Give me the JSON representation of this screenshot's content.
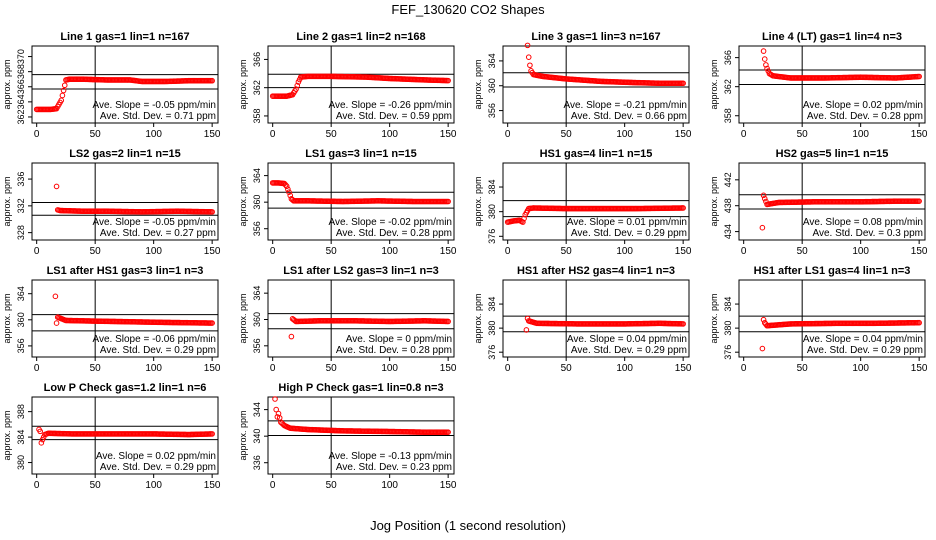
{
  "page": {
    "title": "FEF_130620  CO2 Shapes",
    "xlabel": "Jog Position (1 second resolution)"
  },
  "style": {
    "point_color": "#ff0000",
    "line_color": "#000000"
  },
  "chart_data": [
    {
      "type": "scatter",
      "title": "Line 1 gas=1 lin=1 n=167",
      "ylabel": "approx. ppm",
      "xticks": [
        0,
        50,
        100,
        150
      ],
      "yticks": [
        362,
        364,
        366,
        368,
        370
      ],
      "xlim": [
        -4,
        155
      ],
      "ylim": [
        361.2,
        371.4
      ],
      "ref_x": 50,
      "ref_y": [
        365.7,
        367.6
      ],
      "annotations": [
        "Ave. Slope = -0.05 ppm/min",
        "Ave. Std. Dev. = 0.71 ppm"
      ],
      "points": [
        [
          0,
          363
        ],
        [
          12,
          363
        ],
        [
          17,
          363.1
        ],
        [
          21,
          364.2
        ],
        [
          23,
          365.5
        ],
        [
          25,
          366.9
        ],
        [
          28,
          367.0
        ],
        [
          40,
          367.0
        ],
        [
          60,
          366.9
        ],
        [
          80,
          366.9
        ],
        [
          90,
          366.7
        ],
        [
          110,
          366.7
        ],
        [
          130,
          366.8
        ],
        [
          150,
          366.8
        ]
      ]
    },
    {
      "type": "scatter",
      "title": "Line 2 gas=1 lin=2 n=168",
      "ylabel": "approx. ppm",
      "xticks": [
        0,
        50,
        100,
        150
      ],
      "yticks": [
        358,
        362,
        366
      ],
      "xlim": [
        -4,
        155
      ],
      "ylim": [
        357,
        367.9
      ],
      "ref_x": 50,
      "ref_y": [
        362,
        363.9
      ],
      "annotations": [
        "Ave. Slope = -0.26 ppm/min",
        "Ave. Std. Dev. = 0.59 ppm"
      ],
      "points": [
        [
          0,
          360.8
        ],
        [
          12,
          360.8
        ],
        [
          17,
          361
        ],
        [
          20,
          361.8
        ],
        [
          22,
          362.8
        ],
        [
          24,
          363.5
        ],
        [
          30,
          363.6
        ],
        [
          50,
          363.6
        ],
        [
          80,
          363.5
        ],
        [
          100,
          363.3
        ],
        [
          130,
          363.1
        ],
        [
          150,
          363.0
        ]
      ]
    },
    {
      "type": "scatter",
      "title": "Line 3 gas=1 lin=3 n=167",
      "ylabel": "approx. ppm",
      "xticks": [
        0,
        50,
        100,
        150
      ],
      "yticks": [
        356,
        360,
        364
      ],
      "xlim": [
        -4,
        155
      ],
      "ylim": [
        354,
        366.4
      ],
      "ref_x": 50,
      "ref_y": [
        359.8,
        362.1
      ],
      "annotations": [
        "Ave. Slope = -0.21 ppm/min",
        "Ave. Std. Dev. = 0.66 ppm"
      ],
      "points": [
        [
          17,
          366.5
        ],
        [
          18,
          364.6
        ],
        [
          19,
          363.3
        ],
        [
          20,
          362.4
        ],
        [
          22,
          361.8
        ],
        [
          30,
          361.5
        ],
        [
          50,
          361.1
        ],
        [
          80,
          360.7
        ],
        [
          110,
          360.5
        ],
        [
          130,
          360.4
        ],
        [
          150,
          360.4
        ]
      ]
    },
    {
      "type": "scatter",
      "title": "Line 4 (LT) gas=1 lin=4 n=3",
      "ylabel": "approx. ppm",
      "xticks": [
        0,
        50,
        100,
        150
      ],
      "yticks": [
        358,
        362,
        366
      ],
      "xlim": [
        -4,
        155
      ],
      "ylim": [
        357,
        367.6
      ],
      "ref_x": 50,
      "ref_y": [
        362.3,
        364.3
      ],
      "annotations": [
        "Ave. Slope = 0.02 ppm/min",
        "Ave. Std. Dev. = 0.28 ppm"
      ],
      "points": [
        [
          17,
          366.9
        ],
        [
          18,
          365.8
        ],
        [
          19,
          365.0
        ],
        [
          20,
          364.5
        ],
        [
          22,
          363.8
        ],
        [
          25,
          363.5
        ],
        [
          40,
          363.2
        ],
        [
          70,
          363.2
        ],
        [
          100,
          363.3
        ],
        [
          130,
          363.2
        ],
        [
          150,
          363.4
        ]
      ]
    },
    {
      "type": "scatter",
      "title": "LS2 gas=2 lin=1 n=15",
      "ylabel": "approx. ppm",
      "xticks": [
        0,
        50,
        100,
        150
      ],
      "yticks": [
        328,
        332,
        336
      ],
      "xlim": [
        -4,
        155
      ],
      "ylim": [
        326.9,
        338.4
      ],
      "ref_x": 50,
      "ref_y": [
        330.6,
        332.5
      ],
      "annotations": [
        "Ave. Slope = -0.05 ppm/min",
        "Ave. Std. Dev. = 0.27 ppm"
      ],
      "points": [
        [
          17,
          334.9
        ],
        [
          18,
          331.4
        ],
        [
          20,
          331.3
        ],
        [
          40,
          331.2
        ],
        [
          60,
          331.2
        ],
        [
          90,
          331.1
        ],
        [
          120,
          331.2
        ],
        [
          150,
          331.1
        ]
      ]
    },
    {
      "type": "scatter",
      "title": "LS1 gas=3 lin=1 n=15",
      "ylabel": "approx. ppm",
      "xticks": [
        0,
        50,
        100,
        150
      ],
      "yticks": [
        356,
        360,
        364
      ],
      "xlim": [
        -4,
        155
      ],
      "ylim": [
        354.3,
        365.9
      ],
      "ref_x": 50,
      "ref_y": [
        359.1,
        361.5
      ],
      "annotations": [
        "Ave. Slope = -0.02 ppm/min",
        "Ave. Std. Dev. = 0.28 ppm"
      ],
      "points": [
        [
          0,
          362.9
        ],
        [
          5,
          362.9
        ],
        [
          10,
          362.8
        ],
        [
          12,
          362.4
        ],
        [
          14,
          361.5
        ],
        [
          16,
          360.5
        ],
        [
          18,
          360.2
        ],
        [
          30,
          360.2
        ],
        [
          60,
          360.1
        ],
        [
          90,
          360.2
        ],
        [
          120,
          360.1
        ],
        [
          150,
          360.1
        ]
      ]
    },
    {
      "type": "scatter",
      "title": "HS1 gas=4 lin=1 n=15",
      "ylabel": "approx. ppm",
      "xticks": [
        0,
        50,
        100,
        150
      ],
      "yticks": [
        376,
        380,
        384
      ],
      "xlim": [
        -4,
        155
      ],
      "ylim": [
        375.4,
        387.9
      ],
      "ref_x": 50,
      "ref_y": [
        379.2,
        381.8
      ],
      "annotations": [
        "Ave. Slope = 0.01 ppm/min",
        "Ave. Std. Dev. = 0.29 ppm"
      ],
      "points": [
        [
          0,
          378.3
        ],
        [
          5,
          378.5
        ],
        [
          10,
          378.6
        ],
        [
          13,
          378.3
        ],
        [
          15,
          379.5
        ],
        [
          18,
          380.5
        ],
        [
          22,
          380.6
        ],
        [
          50,
          380.5
        ],
        [
          80,
          380.5
        ],
        [
          110,
          380.5
        ],
        [
          150,
          380.6
        ]
      ]
    },
    {
      "type": "scatter",
      "title": "HS2 gas=5 lin=1 n=15",
      "ylabel": "approx. ppm",
      "xticks": [
        0,
        50,
        100,
        150
      ],
      "yticks": [
        434,
        438,
        442
      ],
      "xlim": [
        -4,
        155
      ],
      "ylim": [
        432.7,
        444.6
      ],
      "ref_x": 50,
      "ref_y": [
        437.5,
        439.7
      ],
      "annotations": [
        "Ave. Slope = 0.08 ppm/min",
        "Ave. Std. Dev. = 0.3 ppm"
      ],
      "points": [
        [
          16,
          434.6
        ],
        [
          17,
          439.6
        ],
        [
          18,
          439.1
        ],
        [
          20,
          438.2
        ],
        [
          30,
          438.5
        ],
        [
          60,
          438.6
        ],
        [
          100,
          438.6
        ],
        [
          130,
          438.7
        ],
        [
          150,
          438.7
        ]
      ]
    },
    {
      "type": "scatter",
      "title": "LS1 after HS1 gas=3 lin=1 n=3",
      "ylabel": "approx. ppm",
      "xticks": [
        0,
        50,
        100,
        150
      ],
      "yticks": [
        356,
        360,
        364
      ],
      "xlim": [
        -4,
        155
      ],
      "ylim": [
        354.3,
        366.1
      ],
      "ref_x": 50,
      "ref_y": [
        358.3,
        360.8
      ],
      "annotations": [
        "Ave. Slope = -0.06 ppm/min",
        "Ave. Std. Dev. = 0.29 ppm"
      ],
      "points": [
        [
          16,
          363.6
        ],
        [
          17,
          359.5
        ],
        [
          18,
          360.4
        ],
        [
          25,
          359.9
        ],
        [
          50,
          359.8
        ],
        [
          80,
          359.7
        ],
        [
          110,
          359.6
        ],
        [
          150,
          359.5
        ]
      ]
    },
    {
      "type": "scatter",
      "title": "LS1 after LS2 gas=3 lin=1 n=3",
      "ylabel": "approx. ppm",
      "xticks": [
        0,
        50,
        100,
        150
      ],
      "yticks": [
        356,
        360,
        364
      ],
      "xlim": [
        -4,
        155
      ],
      "ylim": [
        354.3,
        366
      ],
      "ref_x": 50,
      "ref_y": [
        358.6,
        360.9
      ],
      "annotations": [
        "Ave. Slope = 0 ppm/min",
        "Ave. Std. Dev. = 0.28 ppm"
      ],
      "points": [
        [
          16,
          357.4
        ],
        [
          17,
          360.1
        ],
        [
          20,
          359.7
        ],
        [
          40,
          359.8
        ],
        [
          70,
          359.8
        ],
        [
          100,
          359.7
        ],
        [
          130,
          359.8
        ],
        [
          150,
          359.7
        ]
      ]
    },
    {
      "type": "scatter",
      "title": "HS1 after HS2 gas=4 lin=1 n=3",
      "ylabel": "approx. ppm",
      "xticks": [
        0,
        50,
        100,
        150
      ],
      "yticks": [
        376,
        380,
        384
      ],
      "xlim": [
        -4,
        155
      ],
      "ylim": [
        375.2,
        388
      ],
      "ref_x": 50,
      "ref_y": [
        379.4,
        382
      ],
      "annotations": [
        "Ave. Slope = 0.04 ppm/min",
        "Ave. Std. Dev. = 0.29 ppm"
      ],
      "points": [
        [
          16,
          379.7
        ],
        [
          17,
          381.6
        ],
        [
          18,
          381.2
        ],
        [
          25,
          380.8
        ],
        [
          60,
          380.7
        ],
        [
          100,
          380.7
        ],
        [
          130,
          380.8
        ],
        [
          150,
          380.7
        ]
      ]
    },
    {
      "type": "scatter",
      "title": "HS1 after LS1 gas=4 lin=1 n=3",
      "ylabel": "approx. ppm",
      "xticks": [
        0,
        50,
        100,
        150
      ],
      "yticks": [
        376,
        380,
        384
      ],
      "xlim": [
        -4,
        155
      ],
      "ylim": [
        375.2,
        388
      ],
      "ref_x": 50,
      "ref_y": [
        379.4,
        382
      ],
      "annotations": [
        "Ave. Slope = 0.04 ppm/min",
        "Ave. Std. Dev. = 0.29 ppm"
      ],
      "points": [
        [
          16,
          376.6
        ],
        [
          17,
          381.4
        ],
        [
          18,
          380.9
        ],
        [
          20,
          380.4
        ],
        [
          40,
          380.7
        ],
        [
          80,
          380.8
        ],
        [
          110,
          380.8
        ],
        [
          150,
          380.9
        ]
      ]
    },
    {
      "type": "scatter",
      "title": "Low P Check gas=1.2 lin=1 n=6",
      "ylabel": "approx. ppm",
      "xticks": [
        0,
        50,
        100,
        150
      ],
      "yticks": [
        380,
        384,
        388
      ],
      "xlim": [
        -4,
        155
      ],
      "ylim": [
        378.2,
        390.3
      ],
      "ref_x": 50,
      "ref_y": [
        383.6,
        385.7
      ],
      "annotations": [
        "Ave. Slope = 0.02 ppm/min",
        "Ave. Std. Dev. = 0.29 ppm"
      ],
      "points": [
        [
          2,
          385.2
        ],
        [
          3,
          384.9
        ],
        [
          4,
          383.1
        ],
        [
          5,
          383.6
        ],
        [
          7,
          384.4
        ],
        [
          10,
          384.6
        ],
        [
          30,
          384.5
        ],
        [
          60,
          384.5
        ],
        [
          100,
          384.5
        ],
        [
          130,
          384.4
        ],
        [
          150,
          384.5
        ]
      ]
    },
    {
      "type": "scatter",
      "title": "High P Check gas=1 lin=0.8 n=3",
      "ylabel": "approx. ppm",
      "xticks": [
        0,
        50,
        100,
        150
      ],
      "yticks": [
        336,
        340,
        344
      ],
      "xlim": [
        -4,
        155
      ],
      "ylim": [
        334.3,
        345.9
      ],
      "ref_x": 50,
      "ref_y": [
        340.1,
        342.3
      ],
      "annotations": [
        "Ave. Slope = -0.13 ppm/min",
        "Ave. Std. Dev. = 0.23 ppm"
      ],
      "points": [
        [
          2,
          345.6
        ],
        [
          3,
          344.0
        ],
        [
          4,
          342.9
        ],
        [
          5,
          343.4
        ],
        [
          7,
          342.1
        ],
        [
          10,
          341.6
        ],
        [
          15,
          341.2
        ],
        [
          30,
          341.0
        ],
        [
          60,
          340.8
        ],
        [
          100,
          340.7
        ],
        [
          130,
          340.6
        ],
        [
          150,
          340.6
        ]
      ]
    }
  ]
}
